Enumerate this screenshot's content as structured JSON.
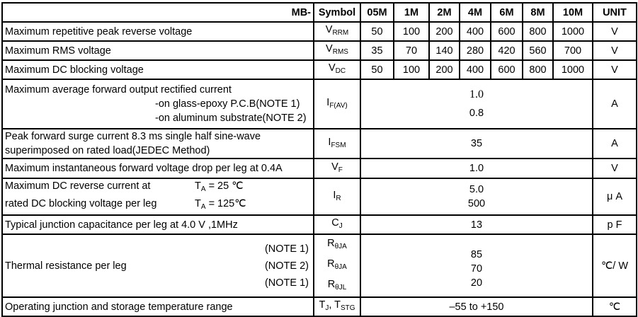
{
  "header": {
    "series": "MB-",
    "symbol": "Symbol",
    "models": [
      "05M",
      "1M",
      "2M",
      "4M",
      "6M",
      "8M",
      "10M"
    ],
    "unit": "UNIT"
  },
  "rows": {
    "vrrm": {
      "desc": "Maximum repetitive peak reverse voltage",
      "sym": "V",
      "sub": "RRM",
      "values": [
        "50",
        "100",
        "200",
        "400",
        "600",
        "800",
        "1000"
      ],
      "unit": "V"
    },
    "vrms": {
      "desc": "Maximum RMS voltage",
      "sym": "V",
      "sub": "RMS",
      "values": [
        "35",
        "70",
        "140",
        "280",
        "420",
        "560",
        "700"
      ],
      "unit": "V"
    },
    "vdc": {
      "desc": "Maximum DC blocking voltage",
      "sym": "V",
      "sub": "DC",
      "values": [
        "50",
        "100",
        "200",
        "400",
        "600",
        "800",
        "1000"
      ],
      "unit": "V"
    },
    "ifav": {
      "desc": "Maximum average forward output rectified current",
      "line2": "-on glass-epoxy P.C.B(NOTE 1)",
      "line3": "-on aluminum substrate(NOTE 2)",
      "sym": "I",
      "sub": "F(AV)",
      "value1": "1.0",
      "value2": "0.8",
      "unit": "A"
    },
    "ifsm": {
      "desc": "Peak forward surge current 8.3 ms single half sine-wave",
      "line2": "superimposed on rated load(JEDEC Method)",
      "sym": "I",
      "sub": "FSM",
      "value": "35",
      "unit": "A"
    },
    "vf": {
      "desc": "Maximum instantaneous forward voltage drop per leg at 0.4A",
      "sym": "V",
      "sub": "F",
      "value": "1.0",
      "unit": "V"
    },
    "ir": {
      "desc": "Maximum DC reverse current at",
      "line2": "rated DC blocking voltage per leg",
      "cond1": "= 25 ℃",
      "cond2": "= 125℃",
      "cond_sym": "T",
      "cond_sub": "A",
      "sym": "I",
      "sub": "R",
      "value1": "5.0",
      "value2": "500",
      "unit": "μ A"
    },
    "cj": {
      "desc": "Typical junction capacitance per leg at 4.0 V ,1MHz",
      "sym": "C",
      "sub": "J",
      "value": "13",
      "unit": "p F"
    },
    "rth": {
      "desc": "Thermal resistance per leg",
      "notes": [
        "(NOTE 1)",
        "(NOTE 2)",
        "(NOTE 1)"
      ],
      "sym": "R",
      "subs": [
        "θJA",
        "θJA",
        "θJL"
      ],
      "values": [
        "85",
        "70",
        "20"
      ],
      "unit": "℃/ W"
    },
    "temp": {
      "desc": "Operating junction and storage temperature range",
      "sym1": "T",
      "sub1": "J",
      "sep": ", ",
      "sym2": "T",
      "sub2": "STG",
      "value": "–55 to +150",
      "unit": "℃"
    }
  }
}
